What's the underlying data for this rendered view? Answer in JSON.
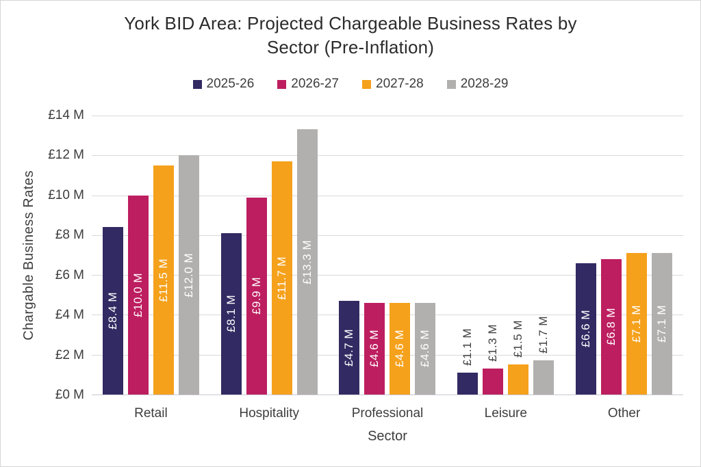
{
  "chart_data": {
    "type": "bar",
    "title": "York BID Area: Projected Chargeable Business Rates by Sector (Pre-Inflation)",
    "title_lines": [
      "York BID Area: Projected Chargeable Business Rates by",
      "Sector (Pre-Inflation)"
    ],
    "xlabel": "Sector",
    "ylabel": "Chargable Business Rates",
    "categories": [
      "Retail",
      "Hospitality",
      "Professional",
      "Leisure",
      "Other"
    ],
    "series": [
      {
        "name": "2025-26",
        "color": "#322a62",
        "values": [
          8.4,
          8.1,
          4.7,
          1.1,
          6.6
        ],
        "labels": [
          "£8.4 M",
          "£8.1 M",
          "£4.7 M",
          "£1.1 M",
          "£6.6 M"
        ]
      },
      {
        "name": "2026-27",
        "color": "#bd1e60",
        "values": [
          10.0,
          9.9,
          4.6,
          1.3,
          6.8
        ],
        "labels": [
          "£10.0 M",
          "£9.9 M",
          "£4.6 M",
          "£1.3 M",
          "£6.8 M"
        ]
      },
      {
        "name": "2027-28",
        "color": "#f5a11c",
        "values": [
          11.5,
          11.7,
          4.6,
          1.5,
          7.1
        ],
        "labels": [
          "£11.5 M",
          "£11.7 M",
          "£4.6 M",
          "£1.5 M",
          "£7.1 M"
        ]
      },
      {
        "name": "2028-29",
        "color": "#b1b0af",
        "values": [
          12.0,
          13.3,
          4.6,
          1.7,
          7.1
        ],
        "labels": [
          "£12.0 M",
          "£13.3 M",
          "£4.6 M",
          "£1.7 M",
          "£7.1 M"
        ]
      }
    ],
    "y_ticks": [
      "£0 M",
      "£2 M",
      "£4 M",
      "£6 M",
      "£8 M",
      "£10 M",
      "£12 M",
      "£14 M"
    ],
    "ylim": [
      0,
      14
    ],
    "grid": "horizontal",
    "legend_position": "top",
    "label_inside_min": 3,
    "colors": {
      "inside_label": "#ffffff",
      "outside_label": "#3f3f3f",
      "gridline": "#d9d9d9",
      "axis_line": "#c9c7d1",
      "text": "#3d3d3d",
      "title": "#2b2b2b",
      "figure_border": "#d6d6d6",
      "background": "#ffffff"
    }
  }
}
